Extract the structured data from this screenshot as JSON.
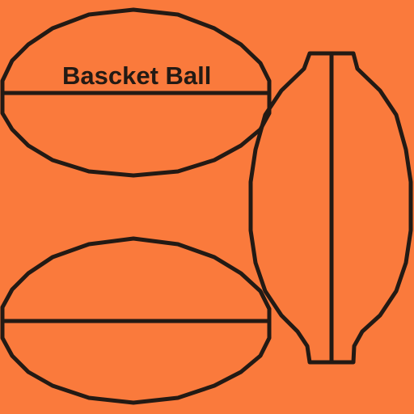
{
  "title": "Bascket Ball",
  "colors": {
    "background": "#fa7a3c",
    "stroke": "#231a14",
    "text": "#231a14"
  },
  "shapes": [
    {
      "name": "top-left-ball-outline",
      "kind": "oval-with-seam"
    },
    {
      "name": "bottom-left-ball-outline",
      "kind": "oval-with-seam"
    },
    {
      "name": "right-ball-outline",
      "kind": "vertical-oval-with-seam"
    }
  ]
}
